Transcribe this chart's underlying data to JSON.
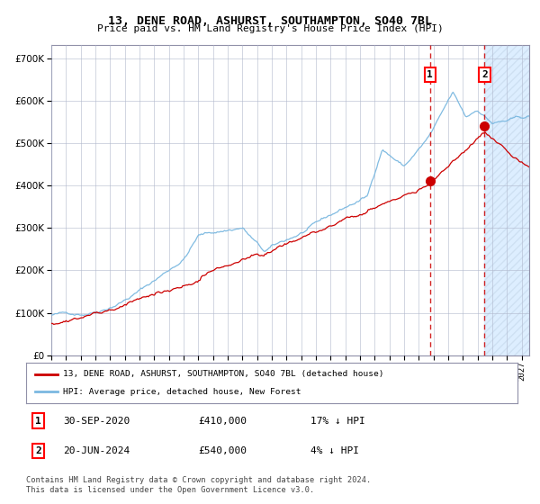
{
  "title": "13, DENE ROAD, ASHURST, SOUTHAMPTON, SO40 7BL",
  "subtitle": "Price paid vs. HM Land Registry's House Price Index (HPI)",
  "legend_line1": "13, DENE ROAD, ASHURST, SOUTHAMPTON, SO40 7BL (detached house)",
  "legend_line2": "HPI: Average price, detached house, New Forest",
  "transaction1_date": "30-SEP-2020",
  "transaction1_price": "£410,000",
  "transaction1_hpi": "17% ↓ HPI",
  "transaction1_year": 2020.75,
  "transaction1_value": 410000,
  "transaction2_date": "20-JUN-2024",
  "transaction2_price": "£540,000",
  "transaction2_hpi": "4% ↓ HPI",
  "transaction2_year": 2024.47,
  "transaction2_value": 540000,
  "footer": "Contains HM Land Registry data © Crown copyright and database right 2024.\nThis data is licensed under the Open Government Licence v3.0.",
  "hpi_color": "#7ab8e0",
  "price_color": "#cc0000",
  "bg_color": "#ffffff",
  "future_bg_color": "#ddeeff",
  "grid_color": "#b0b8cc",
  "ylim": [
    0,
    730000
  ],
  "xlim_start": 1995,
  "xlim_end": 2027.5,
  "future_start": 2024.47
}
